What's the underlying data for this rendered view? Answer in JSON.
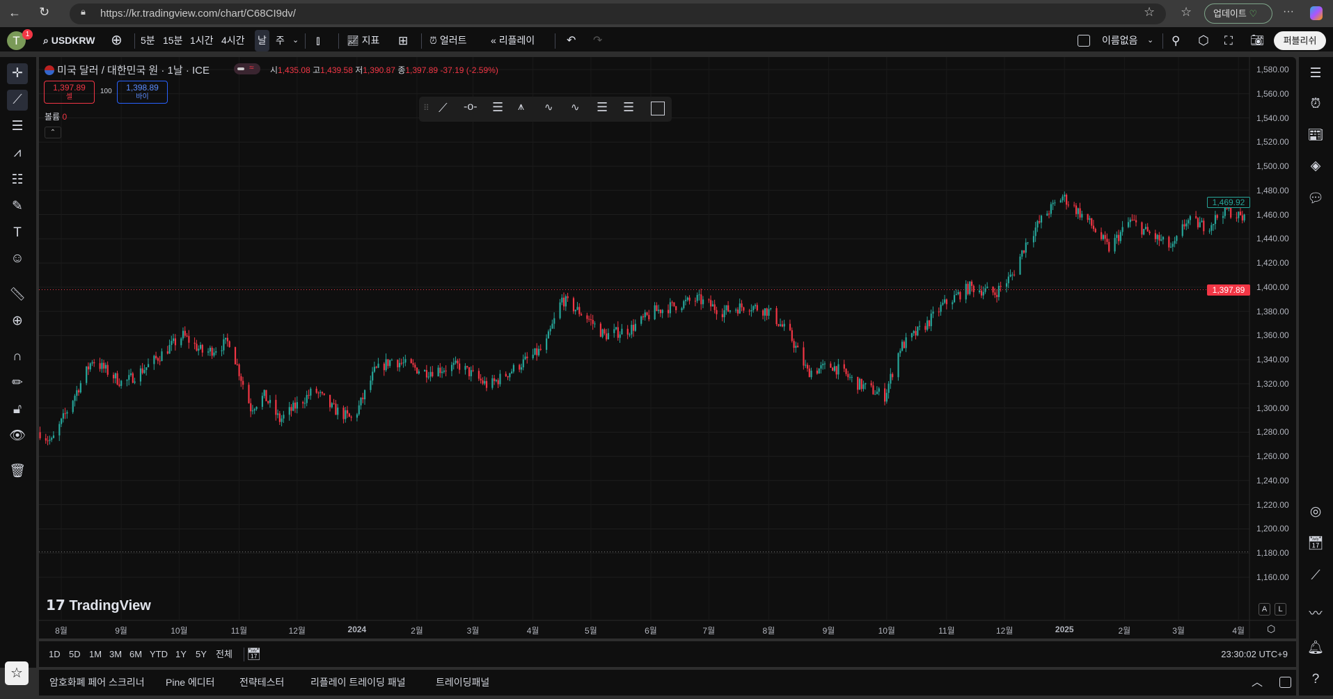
{
  "browser": {
    "url": "https://kr.tradingview.com/chart/C68CI9dv/",
    "update_label": "업데이트"
  },
  "toolbar": {
    "avatar_letter": "T",
    "notification_count": "1",
    "symbol": "USDKRW",
    "intervals": [
      "5분",
      "15분",
      "1시간",
      "4시간",
      "날",
      "주"
    ],
    "active_interval": "날",
    "indicators_label": "지표",
    "alert_label": "얼러트",
    "replay_label": "리플레이",
    "layout_name": "이름없음",
    "publish_label": "퍼블리쉬"
  },
  "legend": {
    "title": "미국 달러 / 대한민국 원 · 1날 · ICE",
    "open_label": "시",
    "open": "1,435.08",
    "high_label": "고",
    "high": "1,439.58",
    "low_label": "저",
    "low": "1,390.87",
    "close_label": "종",
    "close": "1,397.89",
    "change": "-37.19 (-2.59%)",
    "sell_price": "1,397.89",
    "sell_label": "셀",
    "spread": "100",
    "buy_price": "1,398.89",
    "buy_label": "바이",
    "volume_label": "볼륨",
    "volume": "0"
  },
  "colors": {
    "up": "#26a69a",
    "down": "#f23645",
    "buy": "#2962ff",
    "background": "#0f0f0f"
  },
  "price_axis": {
    "ticks": [
      "1,580.00",
      "1,560.00",
      "1,540.00",
      "1,520.00",
      "1,500.00",
      "1,480.00",
      "1,460.00",
      "1,440.00",
      "1,420.00",
      "1,400.00",
      "1,380.00",
      "1,360.00",
      "1,340.00",
      "1,320.00",
      "1,300.00",
      "1,280.00",
      "1,260.00",
      "1,240.00",
      "1,220.00",
      "1,200.00",
      "1,180.00",
      "1,160.00"
    ],
    "last_price_label": "1,397.89",
    "current_price_label": "1,469.92",
    "scale_auto": "A",
    "scale_log": "L"
  },
  "time_axis": {
    "ticks": [
      "8월",
      "9월",
      "10월",
      "11월",
      "12월",
      "2024",
      "2월",
      "3월",
      "4월",
      "5월",
      "6월",
      "7월",
      "8월",
      "9월",
      "10월",
      "11월",
      "12월",
      "2025",
      "2월",
      "3월",
      "4월"
    ]
  },
  "watermark": "TradingView",
  "range_bar": {
    "ranges": [
      "1D",
      "5D",
      "1M",
      "3M",
      "6M",
      "YTD",
      "1Y",
      "5Y",
      "전체"
    ],
    "clock": "23:30:02 UTC+9"
  },
  "bottom_panel": {
    "tabs": [
      "암호화폐 페어 스크리너",
      "Pine 에디터",
      "전략테스터",
      "리플레이 트레이딩 패널",
      "트레이딩패널"
    ]
  },
  "chart_data": {
    "type": "candlestick",
    "symbol": "USDKRW",
    "interval": "1D",
    "ylim": [
      1150,
      1590
    ],
    "xlim": [
      "2023-07-20",
      "2025-04-10"
    ],
    "close_line": 1397.89,
    "horizontal_line": 1181,
    "approx_close_path": [
      [
        "2023-07-21",
        1280
      ],
      [
        "2023-07-27",
        1272
      ],
      [
        "2023-08-17",
        1340
      ],
      [
        "2023-09-02",
        1320
      ],
      [
        "2023-09-15",
        1335
      ],
      [
        "2023-10-03",
        1360
      ],
      [
        "2023-10-14",
        1345
      ],
      [
        "2023-10-27",
        1355
      ],
      [
        "2023-11-07",
        1300
      ],
      [
        "2023-11-14",
        1310
      ],
      [
        "2023-11-22",
        1290
      ],
      [
        "2023-12-10",
        1315
      ],
      [
        "2023-12-19",
        1300
      ],
      [
        "2023-12-30",
        1290
      ],
      [
        "2024-01-10",
        1330
      ],
      [
        "2024-01-19",
        1340
      ],
      [
        "2024-02-05",
        1330
      ],
      [
        "2024-02-23",
        1335
      ],
      [
        "2024-03-09",
        1318
      ],
      [
        "2024-03-20",
        1330
      ],
      [
        "2024-04-07",
        1350
      ],
      [
        "2024-04-16",
        1390
      ],
      [
        "2024-04-29",
        1375
      ],
      [
        "2024-05-08",
        1360
      ],
      [
        "2024-05-21",
        1365
      ],
      [
        "2024-06-03",
        1380
      ],
      [
        "2024-06-25",
        1390
      ],
      [
        "2024-07-08",
        1380
      ],
      [
        "2024-07-21",
        1385
      ],
      [
        "2024-08-01",
        1380
      ],
      [
        "2024-08-12",
        1360
      ],
      [
        "2024-08-21",
        1330
      ],
      [
        "2024-09-03",
        1335
      ],
      [
        "2024-09-16",
        1320
      ],
      [
        "2024-09-30",
        1310
      ],
      [
        "2024-10-08",
        1350
      ],
      [
        "2024-10-22",
        1370
      ],
      [
        "2024-10-30",
        1385
      ],
      [
        "2024-11-13",
        1400
      ],
      [
        "2024-11-26",
        1395
      ],
      [
        "2024-12-05",
        1410
      ],
      [
        "2024-12-13",
        1440
      ],
      [
        "2024-12-22",
        1460
      ],
      [
        "2024-12-31",
        1475
      ],
      [
        "2025-01-13",
        1455
      ],
      [
        "2025-01-24",
        1432
      ],
      [
        "2025-02-04",
        1455
      ],
      [
        "2025-02-13",
        1445
      ],
      [
        "2025-02-26",
        1432
      ],
      [
        "2025-03-05",
        1455
      ],
      [
        "2025-03-16",
        1450
      ],
      [
        "2025-03-25",
        1465
      ],
      [
        "2025-04-05",
        1455
      ]
    ]
  }
}
